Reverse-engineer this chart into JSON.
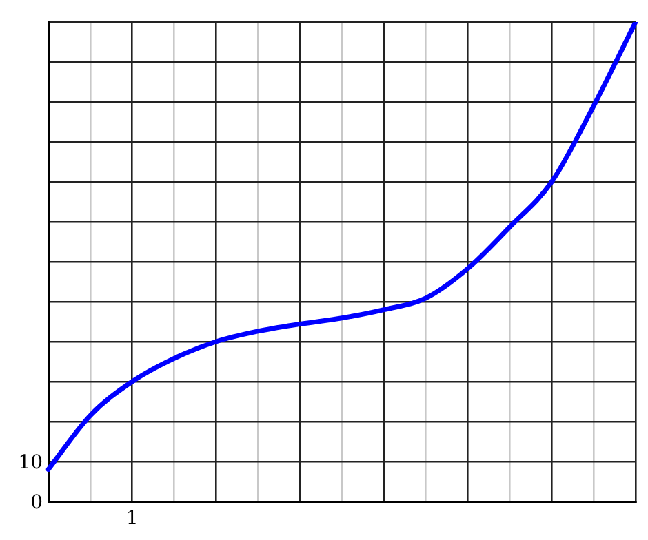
{
  "chart_data": {
    "type": "line",
    "categories": [
      null,
      null,
      null,
      null,
      null,
      null,
      null,
      null,
      null,
      null,
      null,
      null,
      null,
      null,
      null
    ],
    "series": [
      {
        "color": "#0000ff",
        "values": [
          8,
          21.5,
          30,
          35.8,
          40,
          42.6,
          44.4,
          45.9,
          48,
          50.9,
          58.3,
          68.7,
          80,
          99,
          120
        ]
      }
    ],
    "ylim": [
      0,
      120
    ],
    "yticks": [
      0,
      10,
      {
        "value": 20,
        "label": null
      },
      {
        "value": 30,
        "label": null
      },
      {
        "value": 40,
        "label": null
      },
      {
        "value": 50,
        "label": null
      },
      {
        "value": 60,
        "label": null
      },
      {
        "value": 70,
        "label": null
      },
      {
        "value": 80,
        "label": null
      },
      {
        "value": 90,
        "label": null
      },
      {
        "value": 100,
        "label": null
      },
      {
        "value": 110,
        "label": null
      },
      {
        "value": 120,
        "label": null
      }
    ],
    "annotations": [
      "1"
    ],
    "grid": true,
    "legend": false,
    "marker": "none",
    "line_style": "solid"
  }
}
